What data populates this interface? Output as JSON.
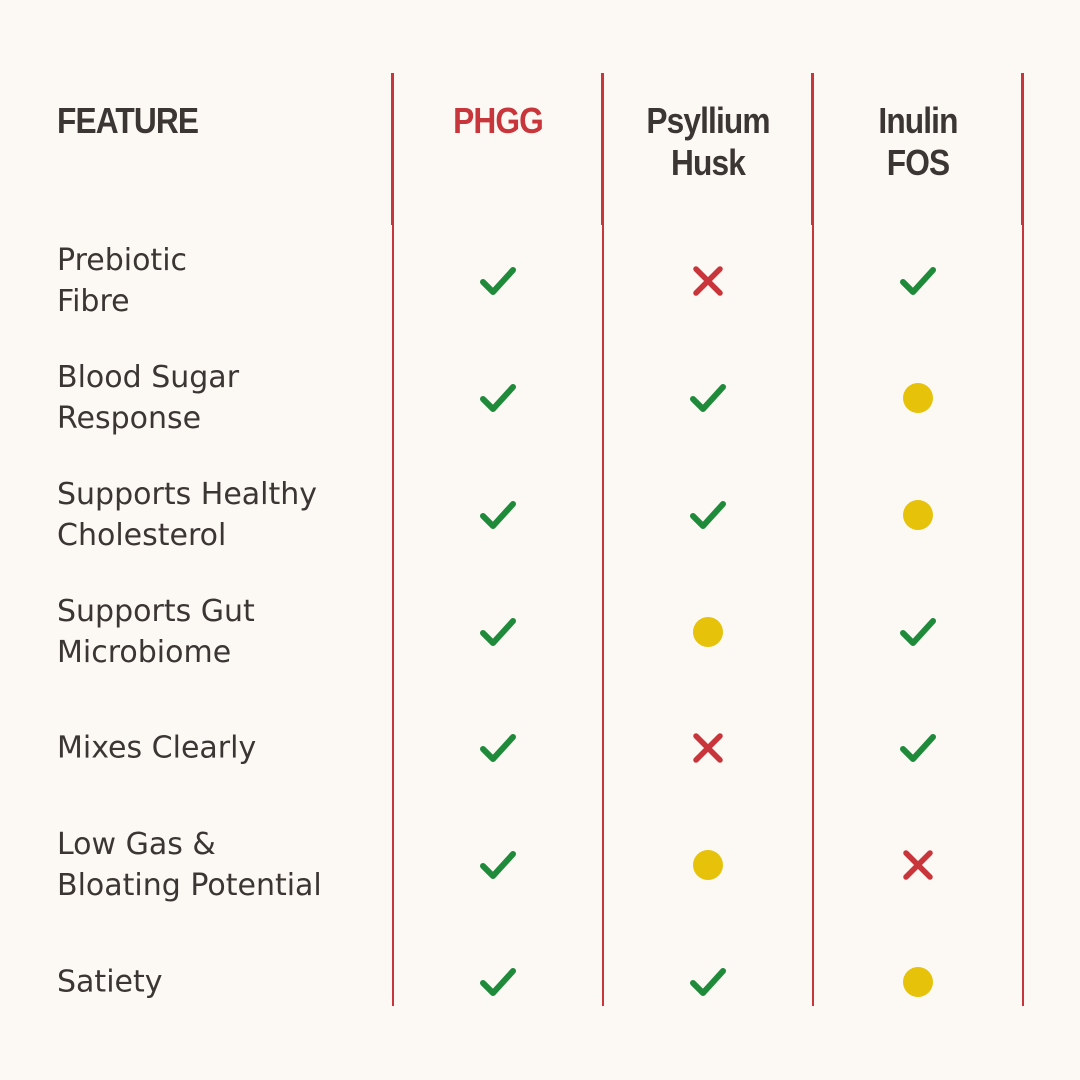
{
  "header": {
    "feature_label": "FEATURE",
    "columns": [
      {
        "label": "PHGG",
        "highlight": true
      },
      {
        "label": "Psyllium\nHusk",
        "highlight": false
      },
      {
        "label": "Inulin\nFOS",
        "highlight": false
      }
    ]
  },
  "rows": [
    {
      "feature": "Prebiotic\nFibre",
      "values": [
        "check",
        "cross",
        "check"
      ]
    },
    {
      "feature": "Blood Sugar\nResponse",
      "values": [
        "check",
        "check",
        "partial"
      ]
    },
    {
      "feature": "Supports Healthy\nCholesterol",
      "values": [
        "check",
        "check",
        "partial"
      ]
    },
    {
      "feature": "Supports Gut\nMicrobiome",
      "values": [
        "check",
        "partial",
        "check"
      ]
    },
    {
      "feature": "Mixes Clearly",
      "values": [
        "check",
        "cross",
        "check"
      ]
    },
    {
      "feature": "Low Gas &\nBloating Potential",
      "values": [
        "check",
        "partial",
        "cross"
      ]
    },
    {
      "feature": "Satiety",
      "values": [
        "check",
        "check",
        "partial"
      ]
    }
  ],
  "icons": {
    "check": "check-icon",
    "cross": "cross-icon",
    "partial": "partial-dot-icon"
  },
  "colors": {
    "background": "#fcf8f4",
    "text": "#3b3634",
    "accent_red": "#c8353a",
    "check_green": "#1f8a3a",
    "cross_red": "#c8353a",
    "partial_yellow": "#e6c20a"
  }
}
